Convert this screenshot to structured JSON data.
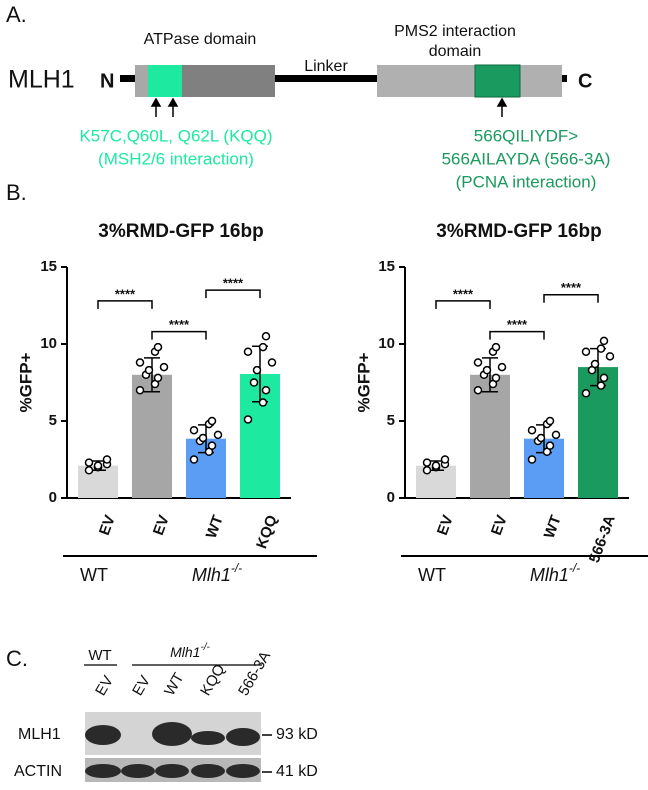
{
  "panel_a": {
    "label": "A.",
    "protein": "MLH1",
    "n_term": "N",
    "c_term": "C",
    "atpase": "ATPase domain",
    "pms2": [
      "PMS2 interaction",
      "domain"
    ],
    "linker": "Linker",
    "kqq_note": [
      "K57C,Q60L, Q62L (KQQ)",
      "(MSH2/6 interaction)"
    ],
    "a566_note": [
      "566QILIYDF>",
      "566AILAYDA (566-3A)",
      "(PCNA interaction)"
    ]
  },
  "panel_b_label": "B.",
  "chart_data": [
    {
      "type": "bar",
      "title": "3%RMD-GFP 16bp",
      "y_label": "%GFP+",
      "categories": [
        "EV",
        "EV",
        "WT",
        "KQQ"
      ],
      "values": [
        2.1,
        8.0,
        3.85,
        8.05
      ],
      "errors": [
        0.3,
        1.1,
        0.9,
        1.8
      ],
      "points": [
        [
          1.8,
          2.0,
          2.2,
          2.3,
          2.1,
          2.5
        ],
        [
          7.0,
          7.4,
          7.8,
          8.0,
          8.3,
          8.5,
          8.8,
          9.5,
          9.8
        ],
        [
          2.5,
          3.0,
          3.4,
          3.7,
          3.9,
          4.1,
          4.4,
          4.8,
          5.0
        ],
        [
          5.1,
          6.2,
          7.0,
          7.5,
          8.3,
          8.8,
          9.5,
          9.8,
          10.5
        ]
      ],
      "colors": [
        "#d9d9d9",
        "#a6a6a6",
        "#5b9cf5",
        "#1de9a0"
      ],
      "ylim": [
        0,
        15
      ],
      "yticks": [
        0,
        5,
        10,
        15
      ],
      "significance": [
        {
          "from": 0,
          "to": 1,
          "label": "****"
        },
        {
          "from": 1,
          "to": 2,
          "label": "****"
        },
        {
          "from": 2,
          "to": 3,
          "label": "****"
        }
      ],
      "groups": [
        {
          "label": "WT",
          "from": 0,
          "to": 0
        },
        {
          "label": "Mlh1",
          "sup": "-/-",
          "from": 1,
          "to": 3
        }
      ]
    },
    {
      "type": "bar",
      "title": "3%RMD-GFP 16bp",
      "y_label": "%GFP+",
      "categories": [
        "EV",
        "EV",
        "WT",
        "566-3A"
      ],
      "values": [
        2.1,
        8.0,
        3.85,
        8.5
      ],
      "errors": [
        0.3,
        1.1,
        0.9,
        1.2
      ],
      "points": [
        [
          1.8,
          2.0,
          2.2,
          2.3,
          2.1,
          2.5
        ],
        [
          7.0,
          7.4,
          7.8,
          8.0,
          8.3,
          8.5,
          8.8,
          9.5,
          9.8
        ],
        [
          2.5,
          3.0,
          3.4,
          3.7,
          3.9,
          4.1,
          4.4,
          4.8,
          5.0
        ],
        [
          6.8,
          7.3,
          7.8,
          8.3,
          8.7,
          9.2,
          9.5,
          9.7,
          10.2
        ]
      ],
      "colors": [
        "#d9d9d9",
        "#a6a6a6",
        "#5b9cf5",
        "#1a9a5e"
      ],
      "ylim": [
        0,
        15
      ],
      "yticks": [
        0,
        5,
        10,
        15
      ],
      "significance": [
        {
          "from": 0,
          "to": 1,
          "label": "****"
        },
        {
          "from": 1,
          "to": 2,
          "label": "****"
        },
        {
          "from": 2,
          "to": 3,
          "label": "****"
        }
      ],
      "groups": [
        {
          "label": "WT",
          "from": 0,
          "to": 0
        },
        {
          "label": "Mlh1",
          "sup": "-/-",
          "from": 1,
          "to": 3
        }
      ]
    }
  ],
  "panel_c": {
    "label": "C.",
    "wt": "WT",
    "mutant": "Mlh1",
    "mutant_sup": "-/-",
    "lanes": [
      "EV",
      "EV",
      "WT",
      "KQQ",
      "566-3A"
    ],
    "rows": [
      "MLH1",
      "ACTIN"
    ],
    "sizes": [
      "93 kD",
      "41 kD"
    ]
  }
}
